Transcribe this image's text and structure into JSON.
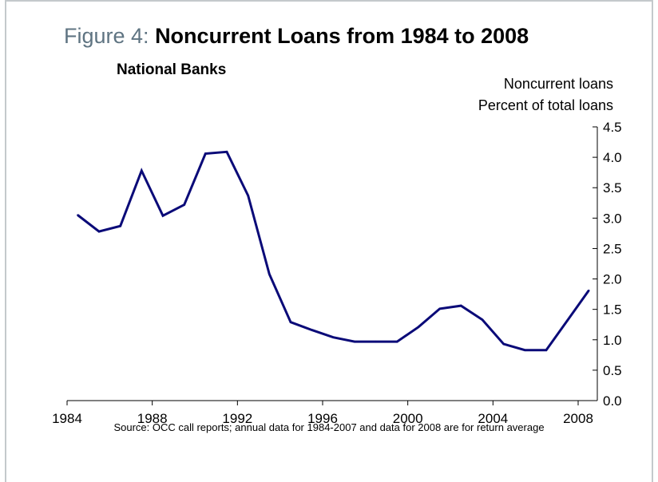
{
  "header": {
    "title_prefix": "Figure 4: ",
    "title": "Noncurrent Loans from 1984 to 2008"
  },
  "chart_data": {
    "type": "line",
    "title": "Noncurrent Loans from 1984 to 2008",
    "subtitle": "National Banks",
    "ylabel_line1": "Noncurrent loans",
    "ylabel_line2": "Percent of total loans",
    "xlabel": "",
    "x_ticks": [
      "1984",
      "1988",
      "1992",
      "1996",
      "2000",
      "2004",
      "2008"
    ],
    "y_ticks": [
      "0.0",
      "0.5",
      "1.0",
      "1.5",
      "2.0",
      "2.5",
      "3.0",
      "3.5",
      "4.0",
      "4.5"
    ],
    "xlim": [
      1984,
      2008.9
    ],
    "ylim": [
      0,
      4.5
    ],
    "y_axis_position": "right",
    "grid": false,
    "line_color": "#0a0a78",
    "series": [
      {
        "x": [
          1984.5,
          1985.5,
          1986.5,
          1987.5,
          1988.5,
          1989.5,
          1990.5,
          1991.5,
          1992.5,
          1993.5,
          1994.5,
          1995.5,
          1996.5,
          1997.5,
          1998.5,
          1999.5,
          2000.5,
          2001.5,
          2002.5,
          2003.5,
          2004.5,
          2005.5,
          2006.5,
          2007.5,
          2008.5
        ],
        "values": [
          3.05,
          2.78,
          2.87,
          3.78,
          3.04,
          3.22,
          4.06,
          4.09,
          3.37,
          2.08,
          1.29,
          1.16,
          1.04,
          0.97,
          0.97,
          0.97,
          1.21,
          1.51,
          1.56,
          1.33,
          0.93,
          0.83,
          0.83,
          1.32,
          1.81
        ]
      }
    ]
  },
  "footer": {
    "source": "Source: OCC call reports; annual data for 1984-2007 and data for 2008 are for return average"
  }
}
